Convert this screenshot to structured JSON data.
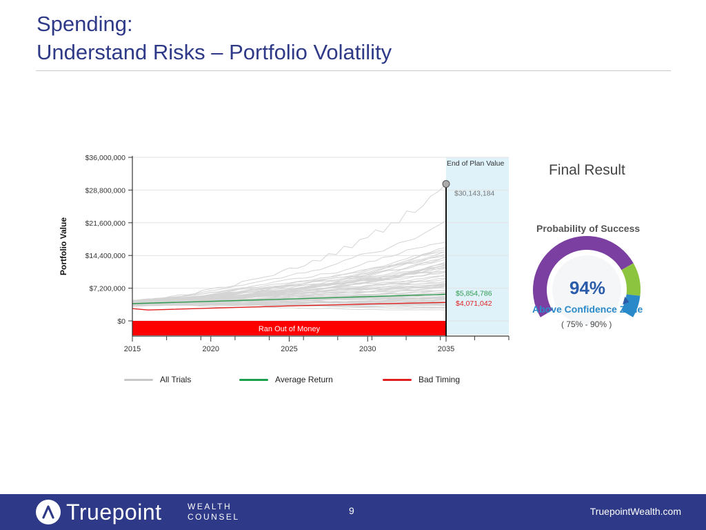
{
  "slide": {
    "title_line1": "Spending:",
    "title_line2": "Understand Risks – Portfolio Volatility"
  },
  "chart_data": {
    "type": "line",
    "ylabel": "Portfolio Value",
    "y_ticks": [
      "$36,000,000",
      "$28,800,000",
      "$21,600,000",
      "$14,400,000",
      "$7,200,000",
      "$0"
    ],
    "y_tick_values": [
      36000000,
      28800000,
      21600000,
      14400000,
      7200000,
      0
    ],
    "ylim": [
      0,
      36000000
    ],
    "x_ticks": [
      "2015",
      "2020",
      "2025",
      "2030",
      "2035"
    ],
    "x_tick_values": [
      2015,
      2020,
      2025,
      2030,
      2035
    ],
    "xlim": [
      2015,
      2039
    ],
    "end_of_plan_label": "End of Plan Value",
    "end_of_plan_year": 2035,
    "annotations": {
      "max_value": "$30,143,184",
      "average_value": "$5,854,786",
      "bad_timing_value": "$4,071,042",
      "ran_out_label": "Ran Out of Money"
    },
    "series": [
      {
        "name": "Average Return",
        "color": "#2e9a4e",
        "x": [
          2015,
          2035
        ],
        "y": [
          3800000,
          5854786
        ]
      },
      {
        "name": "Bad Timing",
        "color": "#e02020",
        "x": [
          2015,
          2016,
          2020,
          2025,
          2030,
          2035
        ],
        "y": [
          2700000,
          2400000,
          2800000,
          3300000,
          3700000,
          4071042
        ]
      },
      {
        "name": "All Trials",
        "color": "#cccccc"
      }
    ],
    "legend": {
      "placement": "bottom",
      "items": [
        {
          "label": "All Trials",
          "color": "#c8c8c8"
        },
        {
          "label": "Average Return",
          "color": "#1aa04a"
        },
        {
          "label": "Bad Timing",
          "color": "#e02020"
        }
      ]
    }
  },
  "result": {
    "title": "Final Result",
    "subtitle": "Probability of Success",
    "probability": "94%",
    "probability_value": 94,
    "zone": "Above Confidence Zone",
    "range": "( 75% - 90% )"
  },
  "footer": {
    "brand": "Truepoint",
    "brand_sub1": "WEALTH",
    "brand_sub2": "COUNSEL",
    "page": "9",
    "site": "TruepointWealth.com"
  }
}
